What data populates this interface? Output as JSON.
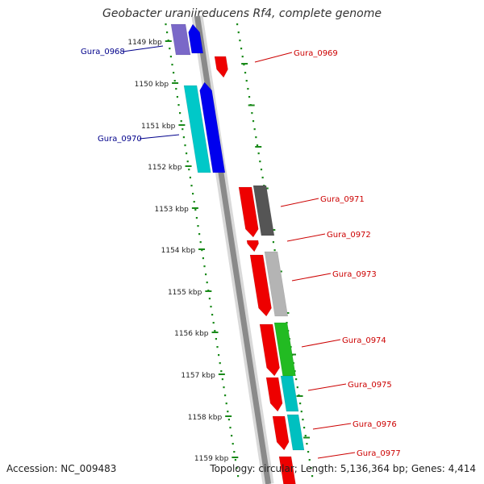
{
  "title": "Geobacter uraniireducens Rf4, complete genome",
  "accession": "Accession: NC_009483",
  "topology": "Topology: circular; Length: 5,136,364 bp; Genes: 4,414",
  "colors": {
    "backbone": "#8a8a8a",
    "tick": "#1a8a1a",
    "forward_label": "#00008b",
    "reverse_label": "#cc0000"
  },
  "ticks": [
    "1149 kbp",
    "1150 kbp",
    "1151 kbp",
    "1152 kbp",
    "1153 kbp",
    "1154 kbp",
    "1155 kbp",
    "1156 kbp",
    "1157 kbp",
    "1158 kbp",
    "1159 kbp"
  ],
  "genes": [
    {
      "name": "Gura_0968",
      "strand": "forward"
    },
    {
      "name": "Gura_0969",
      "strand": "reverse"
    },
    {
      "name": "Gura_0970",
      "strand": "forward"
    },
    {
      "name": "Gura_0971",
      "strand": "reverse"
    },
    {
      "name": "Gura_0972",
      "strand": "reverse"
    },
    {
      "name": "Gura_0973",
      "strand": "reverse"
    },
    {
      "name": "Gura_0974",
      "strand": "reverse"
    },
    {
      "name": "Gura_0975",
      "strand": "reverse"
    },
    {
      "name": "Gura_0976",
      "strand": "reverse"
    },
    {
      "name": "Gura_0977",
      "strand": "reverse"
    }
  ]
}
